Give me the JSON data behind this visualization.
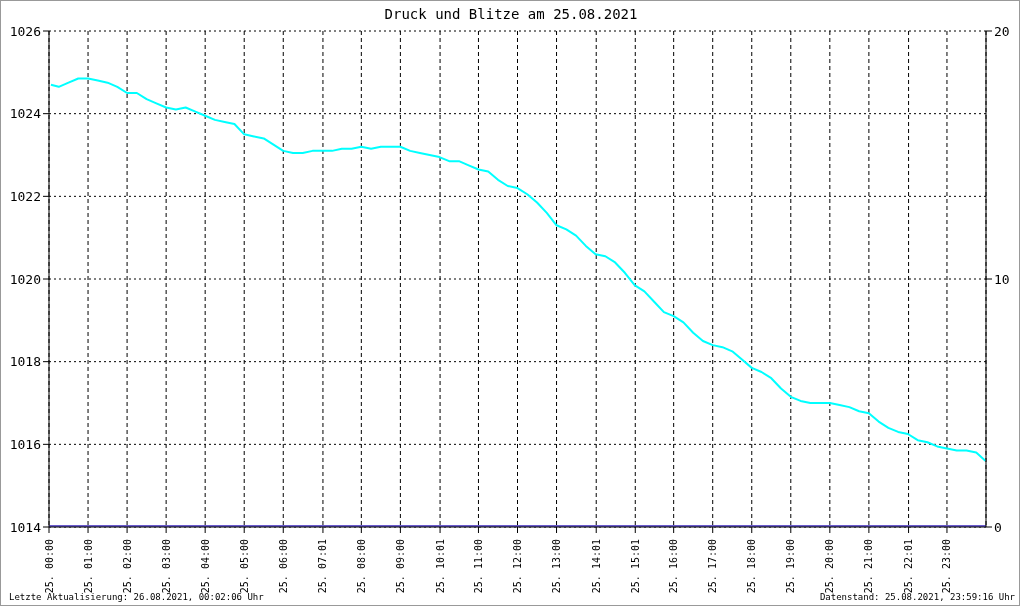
{
  "chart_data": {
    "type": "line",
    "title": "Druck und Blitze am 25.08.2021",
    "annotations": [
      "Letzte Aktualisierung: 26.08.2021, 00:02:06 Uhr",
      "Datenstand: 25.08.2021, 23:59:16 Uhr"
    ],
    "xlim": [
      "2021-08-25T00:00",
      "2021-08-26T00:00"
    ],
    "xticks": [
      {
        "value": "2021-08-25T00:00",
        "label": "25. 00:00"
      },
      {
        "value": "2021-08-25T01:00",
        "label": "25. 01:00"
      },
      {
        "value": "2021-08-25T02:00",
        "label": "25. 02:00"
      },
      {
        "value": "2021-08-25T03:00",
        "label": "25. 03:00"
      },
      {
        "value": "2021-08-25T04:00",
        "label": "25. 04:00"
      },
      {
        "value": "2021-08-25T05:00",
        "label": "25. 05:00"
      },
      {
        "value": "2021-08-25T06:00",
        "label": "25. 06:00"
      },
      {
        "value": "2021-08-25T07:01",
        "label": "25. 07:01"
      },
      {
        "value": "2021-08-25T08:00",
        "label": "25. 08:00"
      },
      {
        "value": "2021-08-25T09:00",
        "label": "25. 09:00"
      },
      {
        "value": "2021-08-25T10:01",
        "label": "25. 10:01"
      },
      {
        "value": "2021-08-25T11:00",
        "label": "25. 11:00"
      },
      {
        "value": "2021-08-25T12:00",
        "label": "25. 12:00"
      },
      {
        "value": "2021-08-25T13:00",
        "label": "25. 13:00"
      },
      {
        "value": "2021-08-25T14:01",
        "label": "25. 14:01"
      },
      {
        "value": "2021-08-25T15:01",
        "label": "25. 15:01"
      },
      {
        "value": "2021-08-25T16:00",
        "label": "25. 16:00"
      },
      {
        "value": "2021-08-25T17:00",
        "label": "25. 17:00"
      },
      {
        "value": "2021-08-25T18:00",
        "label": "25. 18:00"
      },
      {
        "value": "2021-08-25T19:00",
        "label": "25. 19:00"
      },
      {
        "value": "2021-08-25T20:00",
        "label": "25. 20:00"
      },
      {
        "value": "2021-08-25T21:00",
        "label": "25. 21:00"
      },
      {
        "value": "2021-08-25T22:01",
        "label": "25. 22:01"
      },
      {
        "value": "2021-08-25T23:00",
        "label": "25. 23:00"
      }
    ],
    "ylim": [
      1014,
      1026
    ],
    "yticks": [
      1014,
      1016,
      1018,
      1020,
      1022,
      1024,
      1026
    ],
    "y2lim": [
      0,
      20
    ],
    "y2ticks": [
      0,
      10,
      20
    ],
    "grid": true,
    "marker": "none",
    "line_style": "solid",
    "series": [
      {
        "color": "#00ffff",
        "x": [
          "2021-08-25T00:03",
          "2021-08-25T00:15",
          "2021-08-25T00:30",
          "2021-08-25T00:45",
          "2021-08-25T01:00",
          "2021-08-25T01:15",
          "2021-08-25T01:30",
          "2021-08-25T01:45",
          "2021-08-25T02:00",
          "2021-08-25T02:15",
          "2021-08-25T02:30",
          "2021-08-25T02:45",
          "2021-08-25T03:00",
          "2021-08-25T03:15",
          "2021-08-25T03:30",
          "2021-08-25T03:45",
          "2021-08-25T04:00",
          "2021-08-25T04:15",
          "2021-08-25T04:30",
          "2021-08-25T04:45",
          "2021-08-25T05:00",
          "2021-08-25T05:15",
          "2021-08-25T05:30",
          "2021-08-25T05:45",
          "2021-08-25T06:00",
          "2021-08-25T06:15",
          "2021-08-25T06:30",
          "2021-08-25T06:45",
          "2021-08-25T07:00",
          "2021-08-25T07:15",
          "2021-08-25T07:30",
          "2021-08-25T07:45",
          "2021-08-25T08:00",
          "2021-08-25T08:15",
          "2021-08-25T08:30",
          "2021-08-25T08:45",
          "2021-08-25T09:00",
          "2021-08-25T09:15",
          "2021-08-25T09:30",
          "2021-08-25T09:45",
          "2021-08-25T10:00",
          "2021-08-25T10:15",
          "2021-08-25T10:30",
          "2021-08-25T10:45",
          "2021-08-25T11:00",
          "2021-08-25T11:15",
          "2021-08-25T11:30",
          "2021-08-25T11:45",
          "2021-08-25T12:00",
          "2021-08-25T12:15",
          "2021-08-25T12:30",
          "2021-08-25T12:45",
          "2021-08-25T13:00",
          "2021-08-25T13:15",
          "2021-08-25T13:30",
          "2021-08-25T13:45",
          "2021-08-25T14:00",
          "2021-08-25T14:15",
          "2021-08-25T14:30",
          "2021-08-25T14:45",
          "2021-08-25T15:00",
          "2021-08-25T15:15",
          "2021-08-25T15:30",
          "2021-08-25T15:45",
          "2021-08-25T16:00",
          "2021-08-25T16:15",
          "2021-08-25T16:30",
          "2021-08-25T16:45",
          "2021-08-25T17:00",
          "2021-08-25T17:15",
          "2021-08-25T17:30",
          "2021-08-25T17:45",
          "2021-08-25T18:00",
          "2021-08-25T18:15",
          "2021-08-25T18:30",
          "2021-08-25T18:45",
          "2021-08-25T19:00",
          "2021-08-25T19:15",
          "2021-08-25T19:30",
          "2021-08-25T19:45",
          "2021-08-25T20:00",
          "2021-08-25T20:15",
          "2021-08-25T20:30",
          "2021-08-25T20:45",
          "2021-08-25T21:00",
          "2021-08-25T21:15",
          "2021-08-25T21:30",
          "2021-08-25T21:45",
          "2021-08-25T22:00",
          "2021-08-25T22:15",
          "2021-08-25T22:30",
          "2021-08-25T22:45",
          "2021-08-25T23:00",
          "2021-08-25T23:15",
          "2021-08-25T23:30",
          "2021-08-25T23:45",
          "2021-08-25T23:59"
        ],
        "values": [
          1024.7,
          1024.65,
          1024.75,
          1024.85,
          1024.85,
          1024.8,
          1024.75,
          1024.65,
          1024.5,
          1024.5,
          1024.35,
          1024.25,
          1024.15,
          1024.1,
          1024.15,
          1024.05,
          1023.95,
          1023.85,
          1023.8,
          1023.75,
          1023.5,
          1023.45,
          1023.4,
          1023.25,
          1023.1,
          1023.05,
          1023.05,
          1023.1,
          1023.1,
          1023.1,
          1023.15,
          1023.15,
          1023.2,
          1023.15,
          1023.2,
          1023.2,
          1023.2,
          1023.1,
          1023.05,
          1023.0,
          1022.95,
          1022.85,
          1022.85,
          1022.75,
          1022.65,
          1022.6,
          1022.4,
          1022.25,
          1022.2,
          1022.05,
          1021.85,
          1021.6,
          1021.3,
          1021.2,
          1021.05,
          1020.8,
          1020.6,
          1020.55,
          1020.4,
          1020.15,
          1019.85,
          1019.7,
          1019.45,
          1019.2,
          1019.1,
          1018.95,
          1018.7,
          1018.5,
          1018.4,
          1018.35,
          1018.25,
          1018.05,
          1017.85,
          1017.75,
          1017.6,
          1017.35,
          1017.15,
          1017.05,
          1017.0,
          1017.0,
          1017.0,
          1016.95,
          1016.9,
          1016.8,
          1016.75,
          1016.55,
          1016.4,
          1016.3,
          1016.25,
          1016.1,
          1016.05,
          1015.95,
          1015.9,
          1015.85,
          1015.85,
          1015.8,
          1015.6
        ]
      },
      {
        "color": "#6a5acd",
        "axis": "y2",
        "x": [
          "2021-08-25T00:00",
          "2021-08-26T00:00"
        ],
        "values": [
          0,
          0
        ]
      }
    ]
  }
}
